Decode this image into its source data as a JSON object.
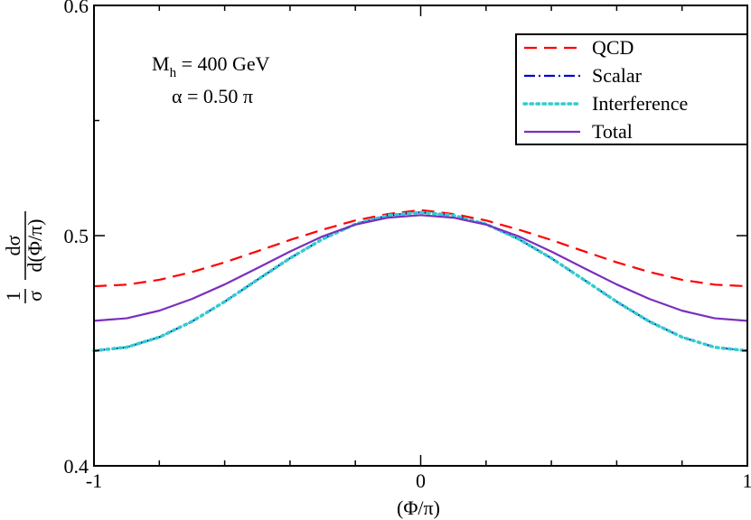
{
  "chart_data": {
    "type": "line",
    "xlabel": "(Φ/π)",
    "ylabel": {
      "prefix_num": "1",
      "prefix_den": "σ",
      "frac_num": "dσ",
      "frac_den": "d(Φ/π)"
    },
    "xlim": [
      -1,
      1
    ],
    "ylim": [
      0.4,
      0.6
    ],
    "x_ticks": [
      {
        "value": -1,
        "label": "-1"
      },
      {
        "value": 0,
        "label": "0"
      },
      {
        "value": 1,
        "label": "1"
      }
    ],
    "y_ticks": [
      {
        "value": 0.4,
        "label": "0.4"
      },
      {
        "value": 0.5,
        "label": "0.5"
      },
      {
        "value": 0.6,
        "label": "0.6"
      }
    ],
    "x_minor_step": 0.2,
    "y_minor_step": 0.05,
    "grid": false,
    "legend_position": "top-right",
    "annotations": {
      "mass_symbol": "M",
      "mass_sub": "h",
      "mass_value": " = 400 GeV",
      "alpha": "α = 0.50 π"
    },
    "x_grid": [
      -1.0,
      -0.9,
      -0.8,
      -0.7,
      -0.6,
      -0.5,
      -0.4,
      -0.3,
      -0.2,
      -0.1,
      0.0,
      0.1,
      0.2,
      0.3,
      0.4,
      0.5,
      0.6,
      0.7,
      0.8,
      0.9,
      1.0
    ],
    "series": [
      {
        "name": "QCD",
        "color": "#ff0000",
        "dash": "dashed",
        "values": [
          0.478,
          0.4787,
          0.4808,
          0.4842,
          0.4884,
          0.4932,
          0.4981,
          0.5026,
          0.5066,
          0.5094,
          0.5111,
          0.5094,
          0.5066,
          0.5026,
          0.4981,
          0.4932,
          0.4884,
          0.4842,
          0.4808,
          0.4787,
          0.478
        ]
      },
      {
        "name": "Scalar",
        "color": "#0000cc",
        "dash": "dashdot",
        "values": [
          0.45,
          0.4515,
          0.4559,
          0.4627,
          0.4713,
          0.4808,
          0.4902,
          0.4985,
          0.505,
          0.5088,
          0.5101,
          0.5088,
          0.505,
          0.4985,
          0.4902,
          0.4808,
          0.4713,
          0.4627,
          0.4559,
          0.4515,
          0.45
        ]
      },
      {
        "name": "Interference",
        "color": "#33cccc",
        "dash": "dotted",
        "values": [
          0.45,
          0.4515,
          0.4559,
          0.4627,
          0.4713,
          0.4808,
          0.4902,
          0.4985,
          0.505,
          0.5088,
          0.5101,
          0.5088,
          0.505,
          0.4985,
          0.4902,
          0.4808,
          0.4713,
          0.4627,
          0.4559,
          0.4515,
          0.45
        ]
      },
      {
        "name": "Total",
        "color": "#7b2fbe",
        "dash": "solid",
        "values": [
          0.463,
          0.4641,
          0.4674,
          0.4725,
          0.4788,
          0.4859,
          0.4931,
          0.4997,
          0.5048,
          0.5078,
          0.5089,
          0.5078,
          0.5048,
          0.4997,
          0.4931,
          0.4859,
          0.4788,
          0.4725,
          0.4674,
          0.4641,
          0.463
        ]
      }
    ]
  }
}
